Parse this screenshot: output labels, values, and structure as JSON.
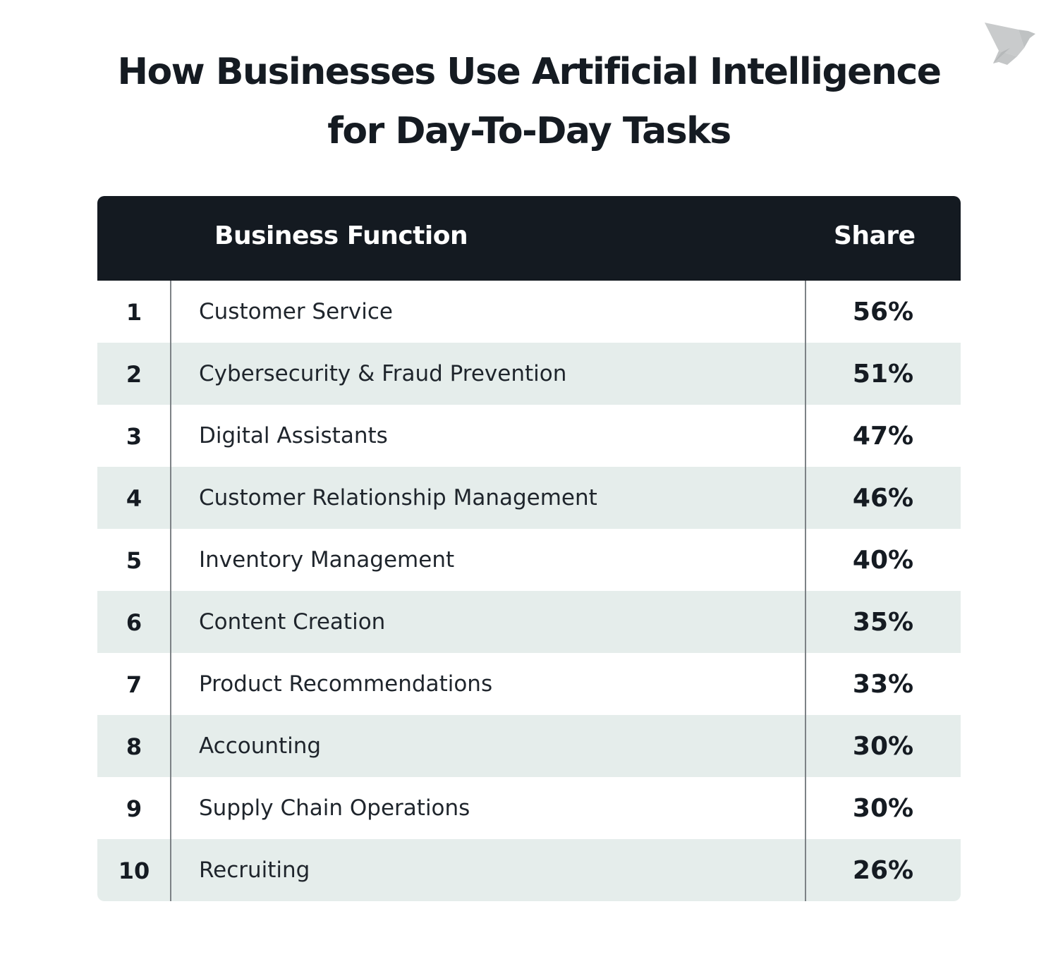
{
  "title_line1": "How Businesses Use Artificial Intelligence",
  "title_line2": "for Day-To-Day Tasks",
  "logo_icon": "origami-bird-icon",
  "colors": {
    "header": "#141a21",
    "stripe": "#e5edeb",
    "text": "#151b22"
  },
  "chart_data": {
    "type": "table",
    "columns": [
      "",
      "Business Function",
      "Share"
    ],
    "rows": [
      {
        "rank": "1",
        "function": "Customer Service",
        "share": "56%"
      },
      {
        "rank": "2",
        "function": "Cybersecurity & Fraud Prevention",
        "share": "51%"
      },
      {
        "rank": "3",
        "function": "Digital Assistants",
        "share": "47%"
      },
      {
        "rank": "4",
        "function": "Customer Relationship Management",
        "share": "46%"
      },
      {
        "rank": "5",
        "function": "Inventory Management",
        "share": "40%"
      },
      {
        "rank": "6",
        "function": "Content Creation",
        "share": "35%"
      },
      {
        "rank": "7",
        "function": "Product Recommendations",
        "share": "33%"
      },
      {
        "rank": "8",
        "function": "Accounting",
        "share": "30%"
      },
      {
        "rank": "9",
        "function": "Supply Chain Operations",
        "share": "30%"
      },
      {
        "rank": "10",
        "function": "Recruiting",
        "share": "26%"
      }
    ]
  }
}
